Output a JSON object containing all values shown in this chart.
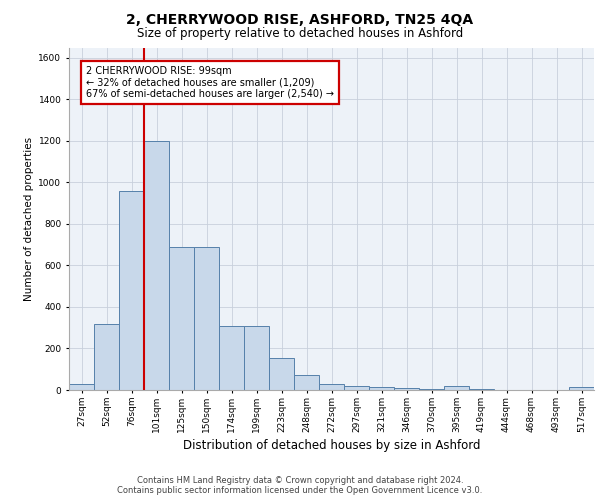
{
  "title1": "2, CHERRYWOOD RISE, ASHFORD, TN25 4QA",
  "title2": "Size of property relative to detached houses in Ashford",
  "xlabel": "Distribution of detached houses by size in Ashford",
  "ylabel": "Number of detached properties",
  "footer1": "Contains HM Land Registry data © Crown copyright and database right 2024.",
  "footer2": "Contains public sector information licensed under the Open Government Licence v3.0.",
  "categories": [
    "27sqm",
    "52sqm",
    "76sqm",
    "101sqm",
    "125sqm",
    "150sqm",
    "174sqm",
    "199sqm",
    "223sqm",
    "248sqm",
    "272sqm",
    "297sqm",
    "321sqm",
    "346sqm",
    "370sqm",
    "395sqm",
    "419sqm",
    "444sqm",
    "468sqm",
    "493sqm",
    "517sqm"
  ],
  "values": [
    30,
    320,
    960,
    1200,
    690,
    690,
    310,
    310,
    155,
    70,
    30,
    20,
    15,
    10,
    5,
    20,
    5,
    2,
    2,
    2,
    15
  ],
  "bar_color": "#c8d8ea",
  "bar_edge_color": "#5580aa",
  "vline_color": "#cc0000",
  "vline_x": 2.5,
  "annotation_line1": "2 CHERRYWOOD RISE: 99sqm",
  "annotation_line2": "← 32% of detached houses are smaller (1,209)",
  "annotation_line3": "67% of semi-detached houses are larger (2,540) →",
  "annotation_box_edge_color": "#cc0000",
  "ylim_max": 1650,
  "yticks": [
    0,
    200,
    400,
    600,
    800,
    1000,
    1200,
    1400,
    1600
  ],
  "grid_color": "#c8d0dc",
  "bg_color": "#edf2f8",
  "title1_fontsize": 10,
  "title2_fontsize": 8.5,
  "ylabel_fontsize": 7.5,
  "xlabel_fontsize": 8.5,
  "footer_fontsize": 6.0,
  "tick_fontsize": 6.5,
  "ann_fontsize": 7.0
}
